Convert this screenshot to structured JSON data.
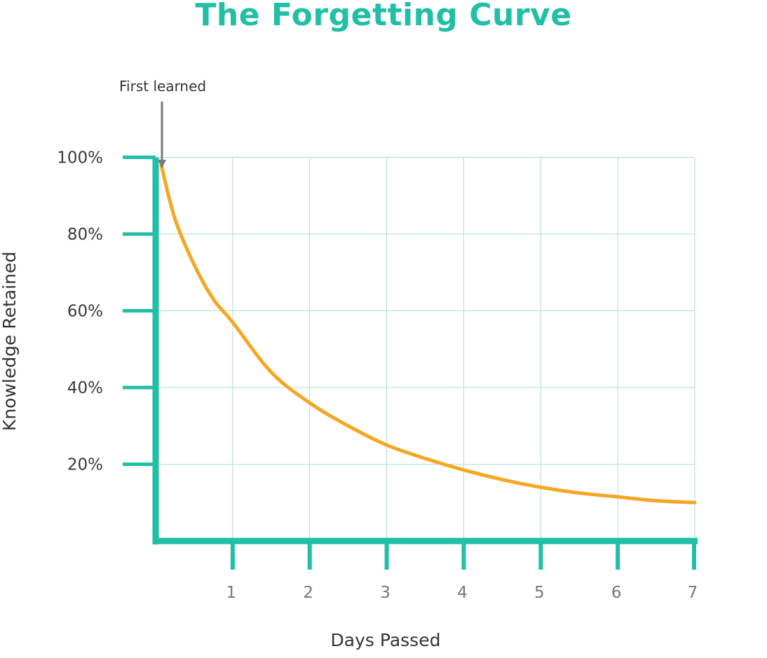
{
  "chart_data": {
    "type": "line",
    "title": "The Forgetting Curve",
    "xlabel": "Days Passed",
    "ylabel": "Knowledge Retained",
    "xlim": [
      0,
      7
    ],
    "ylim": [
      0,
      100
    ],
    "x_ticks": [
      "1",
      "2",
      "3",
      "4",
      "5",
      "6",
      "7"
    ],
    "y_ticks": [
      "20%",
      "40%",
      "60%",
      "80%",
      "100%"
    ],
    "grid": true,
    "series": [
      {
        "x": [
          0,
          0.25,
          0.5,
          0.75,
          1,
          1.5,
          2,
          2.5,
          3,
          3.5,
          4,
          4.5,
          5,
          5.5,
          6,
          6.5,
          7
        ],
        "y": [
          98,
          84,
          72,
          63,
          57,
          44,
          36,
          30,
          25,
          21.5,
          18.5,
          16,
          14,
          12.5,
          11.5,
          10.5,
          10
        ]
      }
    ],
    "annotations": [
      {
        "text": "First learned",
        "x": 0,
        "y": 98
      }
    ],
    "colors": {
      "axis": "#21bfa6",
      "grid": "#a8dfd6",
      "line": "#f5a623",
      "annotation_arrow": "#7a7a7a"
    }
  }
}
